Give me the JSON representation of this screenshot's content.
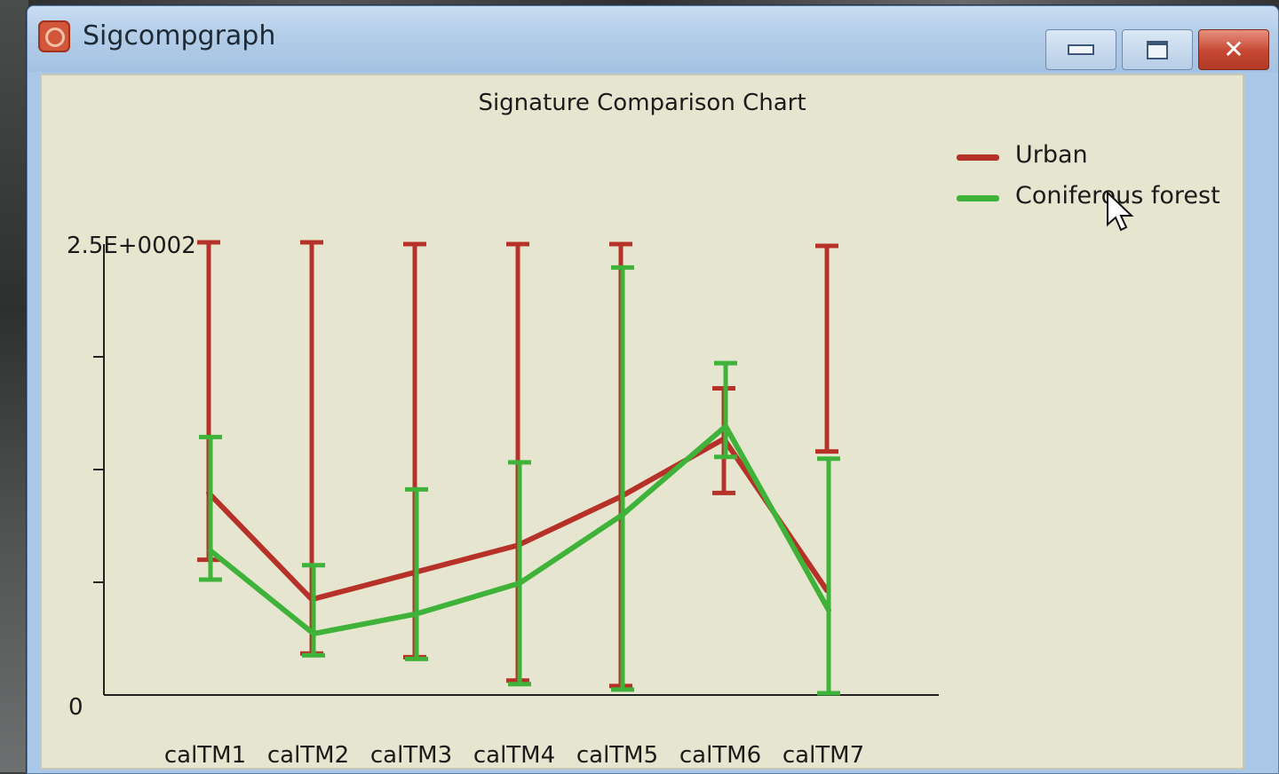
{
  "window": {
    "title": "Sigcompgraph",
    "icon": "app-icon",
    "controls": [
      "minimize-icon",
      "maximize-icon",
      "close-icon"
    ]
  },
  "chart_data": {
    "type": "line",
    "title": "Signature Comparison Chart",
    "categories": [
      "calTM1",
      "calTM2",
      "calTM3",
      "calTM4",
      "calTM5",
      "calTM6",
      "calTM7"
    ],
    "ylim": [
      0,
      250
    ],
    "ytick_labels": {
      "top": "2.5E+0002",
      "bottom": "0"
    },
    "grid": false,
    "legend_position": "top-right",
    "error_bars": true,
    "series": [
      {
        "name": "Urban",
        "color": "#b63228",
        "values": [
          112,
          53,
          68,
          83,
          110,
          142,
          58
        ],
        "low": [
          75,
          23,
          21,
          8,
          5,
          112,
          135
        ],
        "high": [
          251,
          251,
          250,
          250,
          250,
          170,
          249
        ]
      },
      {
        "name": "Coniferous forest",
        "color": "#3fb23a",
        "values": [
          80,
          34,
          45,
          62,
          100,
          149,
          47
        ],
        "low": [
          64,
          22,
          20,
          6,
          3,
          132,
          1
        ],
        "high": [
          143,
          72,
          114,
          129,
          237,
          184,
          131
        ]
      }
    ]
  }
}
